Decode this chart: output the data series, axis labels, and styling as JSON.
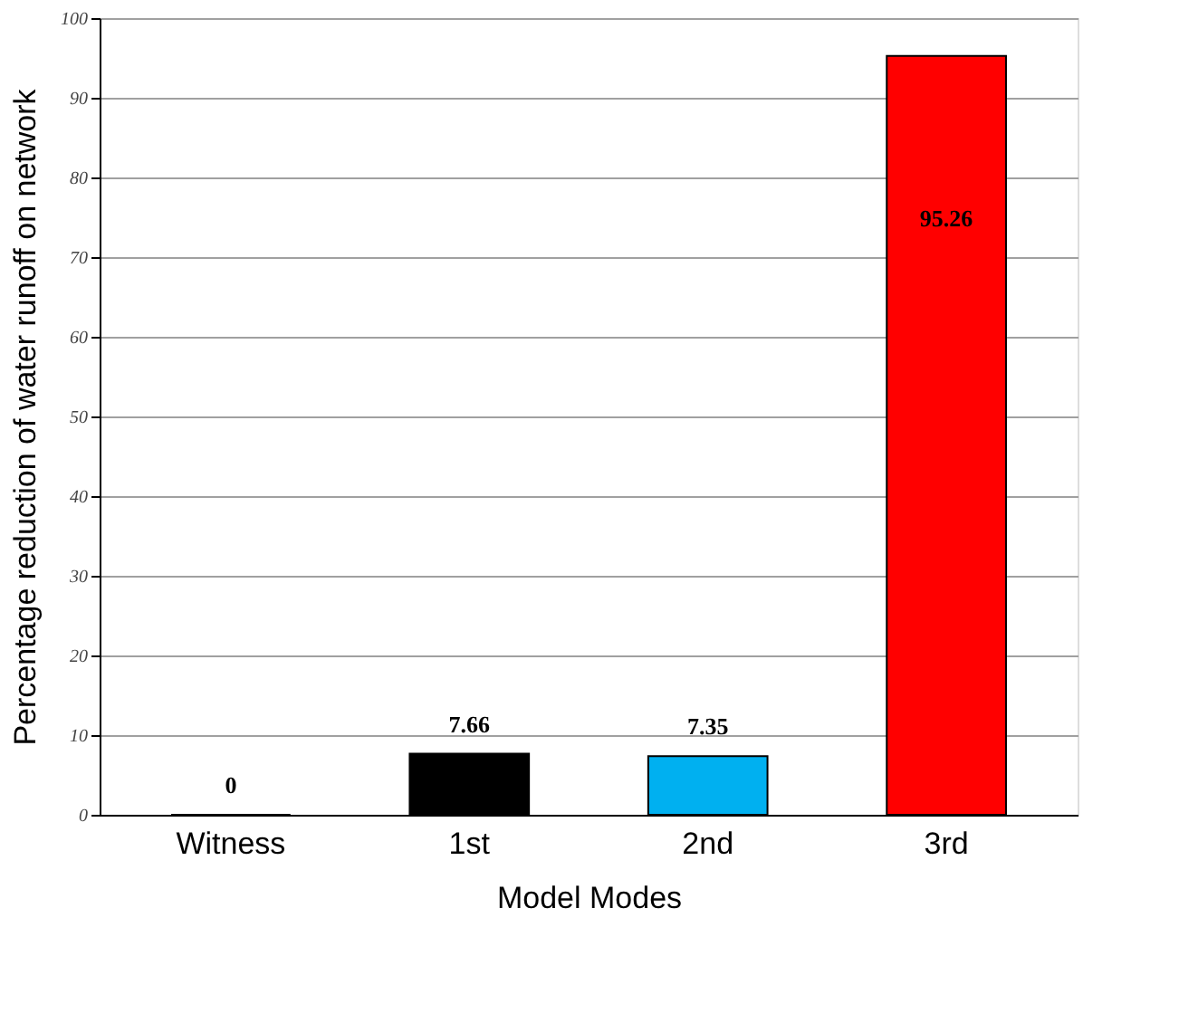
{
  "chart_data": {
    "type": "bar",
    "xlabel": "Model Modes",
    "ylabel": "Percentage reduction of water runoff on network",
    "categories": [
      "Witness",
      "1st",
      "2nd",
      "3rd"
    ],
    "values": [
      0,
      7.66,
      7.35,
      95.26
    ],
    "colors": [
      "#ffffff",
      "#000000",
      "#00b0f0",
      "#ff0000"
    ],
    "ylim": [
      0,
      100
    ],
    "yticks": [
      0,
      10,
      20,
      30,
      40,
      50,
      60,
      70,
      80,
      90,
      100
    ],
    "grid": "y",
    "data_labels": true
  }
}
